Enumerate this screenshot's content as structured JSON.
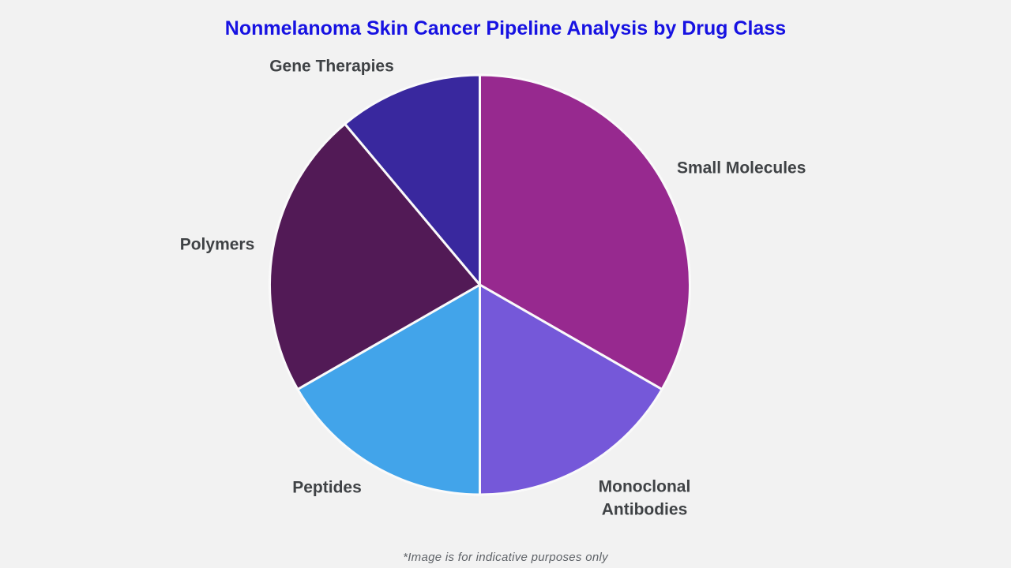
{
  "title": "Nonmelanoma Skin Cancer Pipeline Analysis by Drug Class",
  "footnote": "*Image is for indicative purposes only",
  "colors": {
    "background": "#f2f2f2",
    "title": "#1712e2",
    "label": "#3f4245",
    "footnote": "#5f6368",
    "separator": "#fafafa"
  },
  "chart_data": {
    "type": "pie",
    "title": "Nonmelanoma Skin Cancer Pipeline Analysis by Drug Class",
    "categories": [
      "Small Molecules",
      "Monoclonal Antibodies",
      "Peptides",
      "Polymers",
      "Gene Therapies"
    ],
    "values": [
      33.3,
      16.7,
      16.7,
      22.2,
      11.1
    ],
    "values_unit": "percent (estimated from slice angles: 120°, 60°, 60°, 80°, 40°)",
    "slice_colors": [
      "#97298f",
      "#7558d9",
      "#42a4ea",
      "#521a56",
      "#39289e"
    ],
    "start_angle_deg": 0,
    "direction": "clockwise",
    "legend_position": "none",
    "data_labels": "category names placed outside slices",
    "annotations": [
      "*Image is for indicative purposes only"
    ]
  }
}
